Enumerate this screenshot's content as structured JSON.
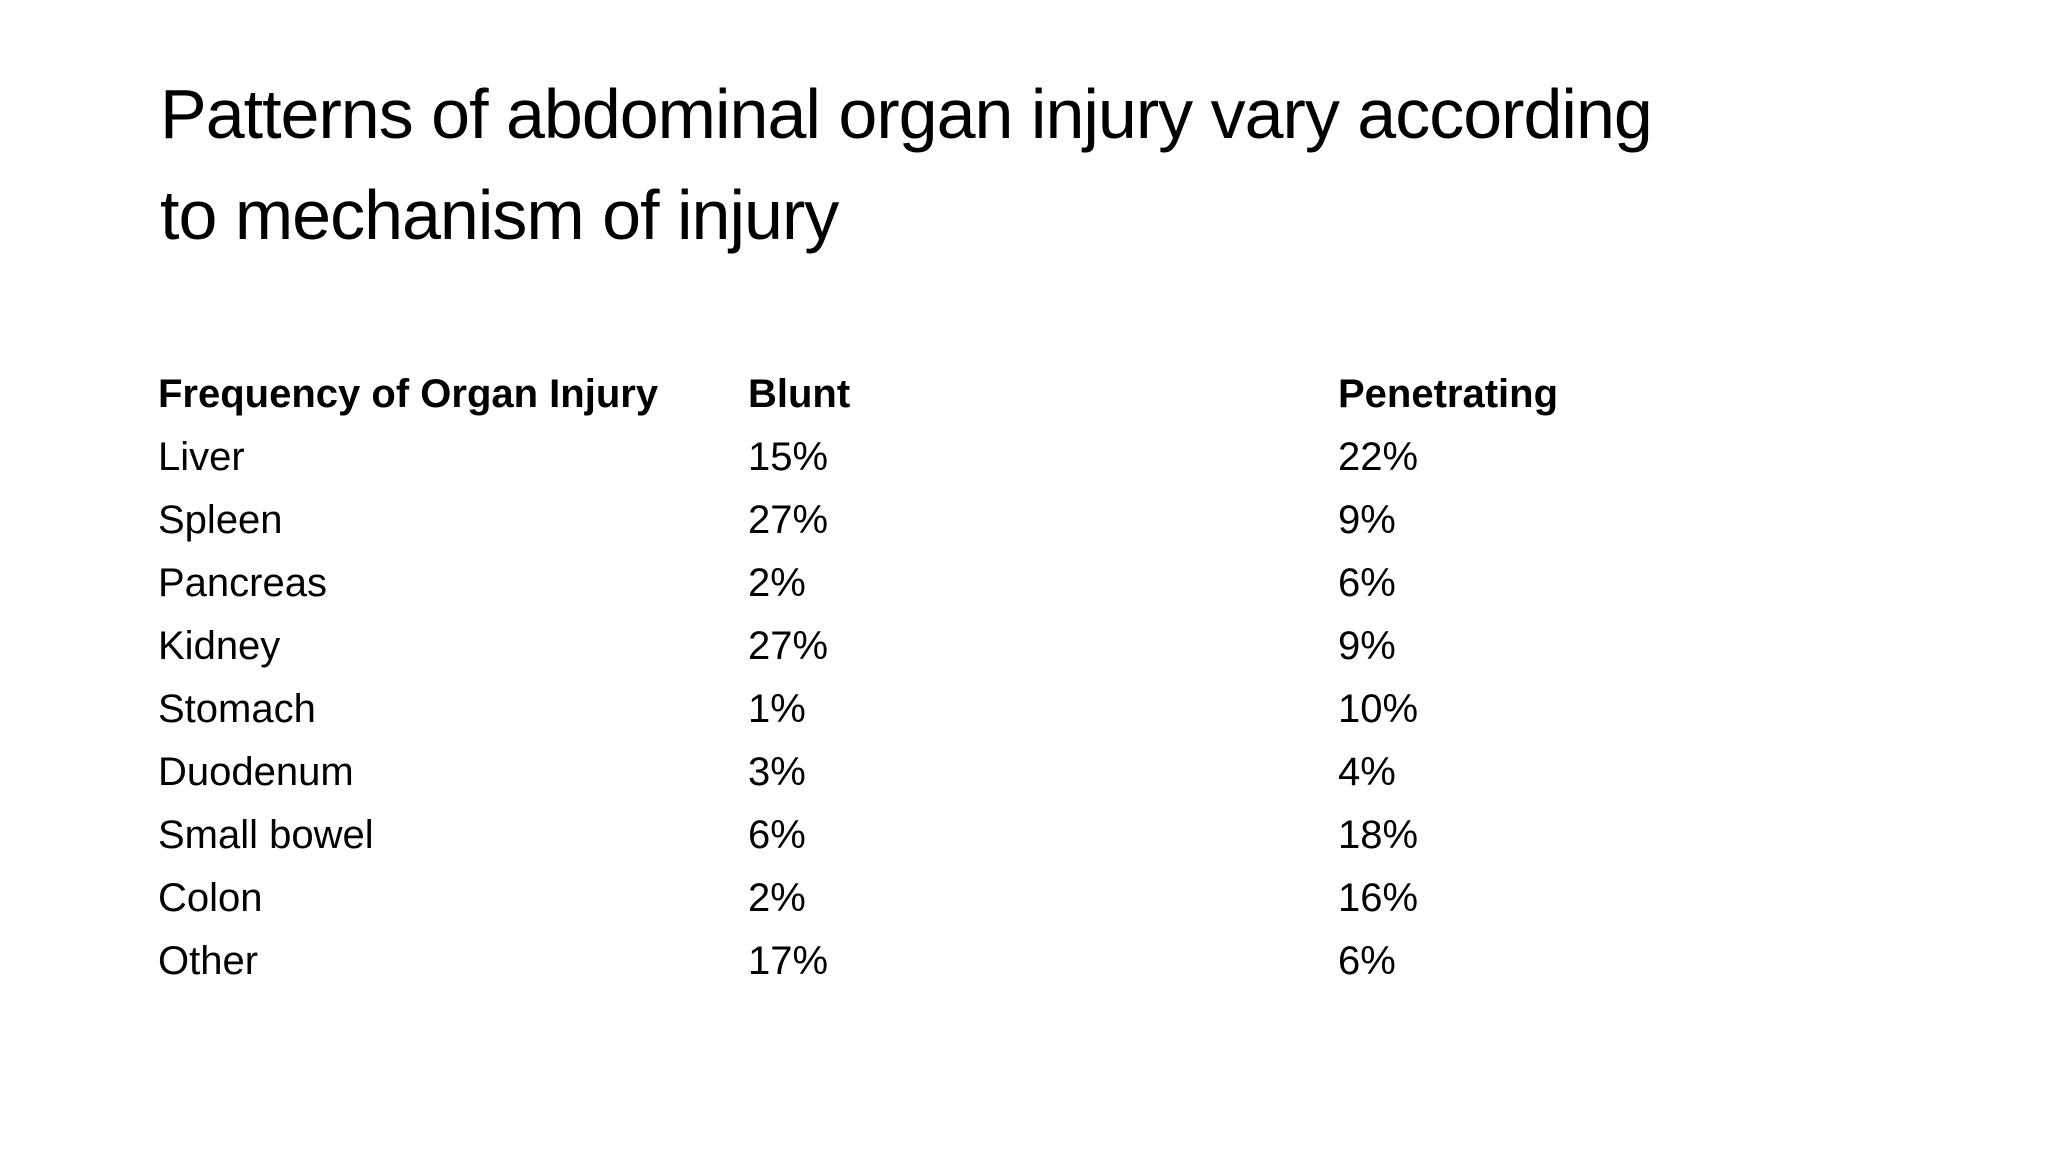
{
  "slide": {
    "background": "#ffffff",
    "text_color": "#000000",
    "title": {
      "full": "Patterns of abdominal organ injury vary according to mechanism of injury",
      "lines": [
        "Patterns of abdominal organ injury vary according",
        "to mechanism of injury"
      ]
    }
  },
  "table": {
    "columns": [
      {
        "key": "organ",
        "label": "Frequency of Organ Injury"
      },
      {
        "key": "blunt",
        "label": "Blunt"
      },
      {
        "key": "penetrating",
        "label": "Penetrating"
      }
    ],
    "rows": [
      {
        "organ": "Liver",
        "blunt": "15%",
        "penetrating": "22%"
      },
      {
        "organ": "Spleen",
        "blunt": "27%",
        "penetrating": "9%"
      },
      {
        "organ": "Pancreas",
        "blunt": "2%",
        "penetrating": "6%"
      },
      {
        "organ": "Kidney",
        "blunt": "27%",
        "penetrating": "9%"
      },
      {
        "organ": "Stomach",
        "blunt": "1%",
        "penetrating": "10%"
      },
      {
        "organ": "Duodenum",
        "blunt": "3%",
        "penetrating": "4%"
      },
      {
        "organ": "Small bowel",
        "blunt": "6%",
        "penetrating": "18%"
      },
      {
        "organ": "Colon",
        "blunt": "2%",
        "penetrating": "16%"
      },
      {
        "organ": "Other",
        "blunt": "17%",
        "penetrating": "6%"
      }
    ]
  }
}
